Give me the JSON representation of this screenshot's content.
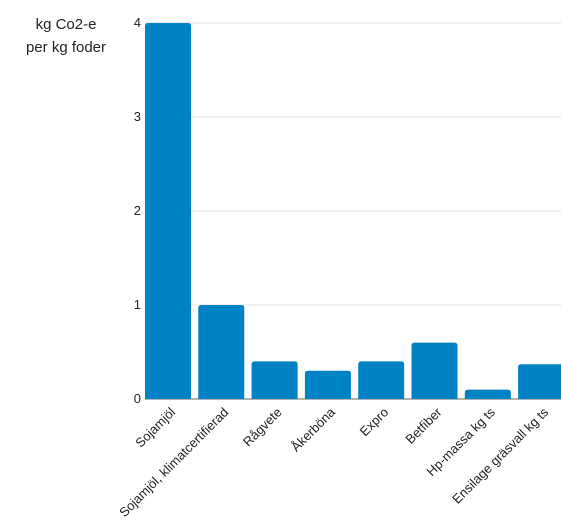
{
  "chart_data": {
    "type": "bar",
    "ylabel_lines": [
      "kg Co2-e",
      "per kg foder"
    ],
    "categories": [
      "Sojamjöl",
      "Sojamjöl, klimatcertifierad",
      "Rågvete",
      "Åkerböna",
      "Expro",
      "Betfiber",
      "Hp-massa kg ts",
      "Ensilage gräsvall kg ts"
    ],
    "values": [
      4.0,
      1.0,
      0.4,
      0.3,
      0.4,
      0.6,
      0.1,
      0.37
    ],
    "ylim": [
      0,
      4
    ],
    "yticks": [
      0,
      1,
      2,
      3,
      4
    ],
    "grid": true,
    "bar_color": "#0082c4"
  }
}
